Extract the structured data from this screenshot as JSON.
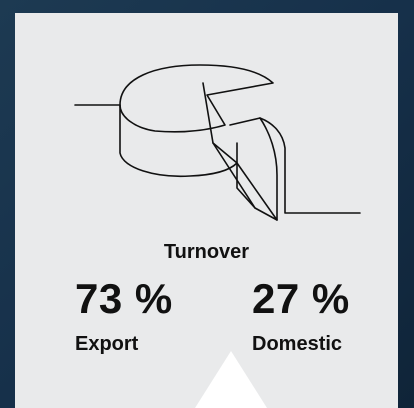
{
  "title": "Turnover",
  "items": [
    {
      "value": "73 %",
      "label": "Export"
    },
    {
      "value": "27 %",
      "label": "Domestic"
    }
  ]
}
